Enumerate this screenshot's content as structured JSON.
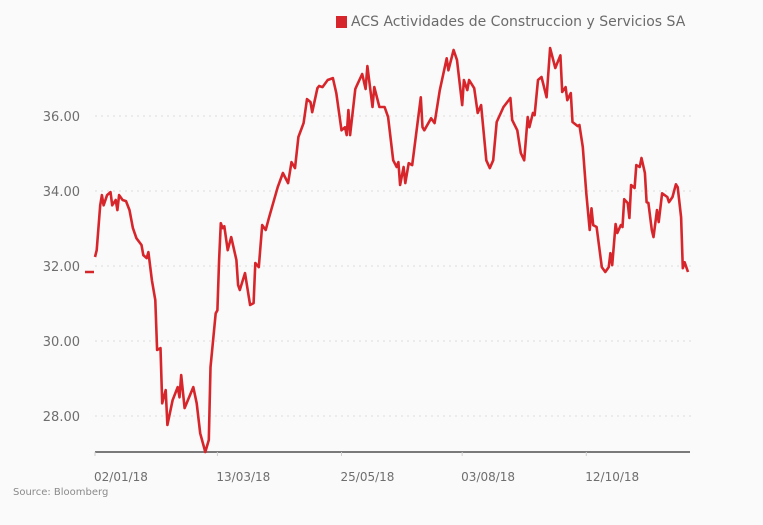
{
  "chart_data": {
    "type": "line",
    "title": "",
    "xlabel": "",
    "ylabel": "",
    "x_unit": "days since 02/01/18",
    "xlim": [
      0,
      344
    ],
    "ylim": [
      27.05,
      38
    ],
    "grid": true,
    "legend_position": "top-right",
    "y_ticks": [
      28,
      30,
      32,
      34,
      36
    ],
    "y_tick_labels": [
      "28.00",
      "30.00",
      "32.00",
      "34.00",
      "36.00"
    ],
    "x_ticks": [
      0,
      71,
      143,
      213,
      285
    ],
    "x_tick_labels": [
      "02/01/18",
      "13/03/18",
      "25/05/18",
      "03/08/18",
      "12/10/18"
    ],
    "last_value": 31.84,
    "series": [
      {
        "name": "ACS Actividades de Construccion y Servicios SA",
        "color": "#d7262b",
        "x": [
          0,
          1,
          3,
          4,
          5,
          7,
          9,
          10,
          12,
          13,
          14,
          16,
          18,
          20,
          22,
          24,
          27,
          28,
          30,
          31,
          33,
          35,
          36,
          38,
          39,
          41,
          42,
          45,
          48,
          49,
          50,
          52,
          57,
          59,
          61,
          64,
          66,
          67,
          70,
          71,
          72,
          73,
          74,
          75,
          77,
          79,
          82,
          83,
          84,
          87,
          90,
          92,
          93,
          95,
          97,
          99,
          101,
          106,
          109,
          112,
          114,
          116,
          118,
          121,
          123,
          125,
          126,
          129,
          130,
          132,
          135,
          138,
          140,
          143,
          145,
          146,
          147,
          148,
          151,
          152,
          155,
          157,
          158,
          161,
          162,
          165,
          168,
          170,
          173,
          175,
          176,
          177,
          179,
          180,
          182,
          184,
          189,
          190,
          191,
          195,
          197,
          200,
          204,
          205,
          208,
          210,
          213,
          214,
          216,
          217,
          220,
          222,
          224,
          227,
          229,
          231,
          233,
          237,
          241,
          242,
          245,
          247,
          249,
          251,
          252,
          254,
          255,
          257,
          259,
          262,
          264,
          267,
          270,
          271,
          273,
          274,
          276,
          277,
          280,
          281,
          283,
          285,
          287,
          288,
          289,
          291,
          294,
          296,
          298,
          299,
          300,
          302,
          303,
          305,
          306,
          307,
          309,
          310,
          311,
          313,
          314,
          316,
          317,
          319,
          320,
          321,
          323,
          324,
          326,
          327,
          329,
          332,
          333,
          335,
          337,
          338,
          340,
          341,
          342,
          344
        ],
        "values": [
          32.24,
          32.42,
          33.62,
          33.89,
          33.62,
          33.89,
          33.97,
          33.62,
          33.76,
          33.49,
          33.89,
          33.76,
          33.73,
          33.49,
          33.01,
          32.74,
          32.56,
          32.29,
          32.21,
          32.37,
          31.62,
          31.09,
          29.76,
          29.81,
          28.34,
          28.69,
          27.76,
          28.42,
          28.77,
          28.5,
          29.09,
          28.21,
          28.77,
          28.34,
          27.54,
          27.04,
          27.36,
          29.3,
          30.74,
          30.82,
          32.16,
          33.14,
          33.01,
          33.06,
          32.42,
          32.77,
          32.16,
          31.49,
          31.36,
          31.81,
          30.96,
          31.01,
          32.08,
          31.97,
          33.09,
          32.96,
          33.3,
          34.1,
          34.48,
          34.21,
          34.77,
          34.61,
          35.44,
          35.81,
          36.45,
          36.37,
          36.1,
          36.74,
          36.8,
          36.77,
          36.96,
          37.01,
          36.61,
          35.62,
          35.7,
          35.49,
          36.16,
          35.49,
          36.72,
          36.82,
          37.12,
          36.72,
          37.33,
          36.24,
          36.77,
          36.24,
          36.24,
          35.97,
          34.82,
          34.64,
          34.77,
          34.16,
          34.64,
          34.21,
          34.74,
          34.69,
          36.5,
          35.7,
          35.62,
          35.94,
          35.81,
          36.69,
          37.54,
          37.22,
          37.76,
          37.49,
          36.29,
          36.96,
          36.69,
          36.96,
          36.74,
          36.08,
          36.29,
          34.82,
          34.61,
          34.82,
          35.84,
          36.24,
          36.48,
          35.89,
          35.62,
          35.01,
          34.82,
          35.97,
          35.7,
          36.08,
          36.02,
          36.96,
          37.04,
          36.5,
          37.81,
          37.28,
          37.62,
          36.64,
          36.77,
          36.42,
          36.61,
          35.84,
          35.73,
          35.76,
          35.17,
          33.94,
          32.96,
          33.54,
          33.09,
          33.04,
          31.97,
          31.84,
          31.97,
          32.34,
          32.02,
          33.12,
          32.88,
          33.09,
          33.04,
          33.78,
          33.68,
          33.28,
          34.16,
          34.08,
          34.69,
          34.64,
          34.88,
          34.48,
          33.7,
          33.68,
          32.96,
          32.77,
          33.49,
          33.17,
          33.94,
          33.84,
          33.7,
          33.84,
          34.18,
          34.1,
          33.3,
          31.94,
          32.1,
          31.84
        ]
      }
    ]
  },
  "source": "Source: Bloomberg"
}
